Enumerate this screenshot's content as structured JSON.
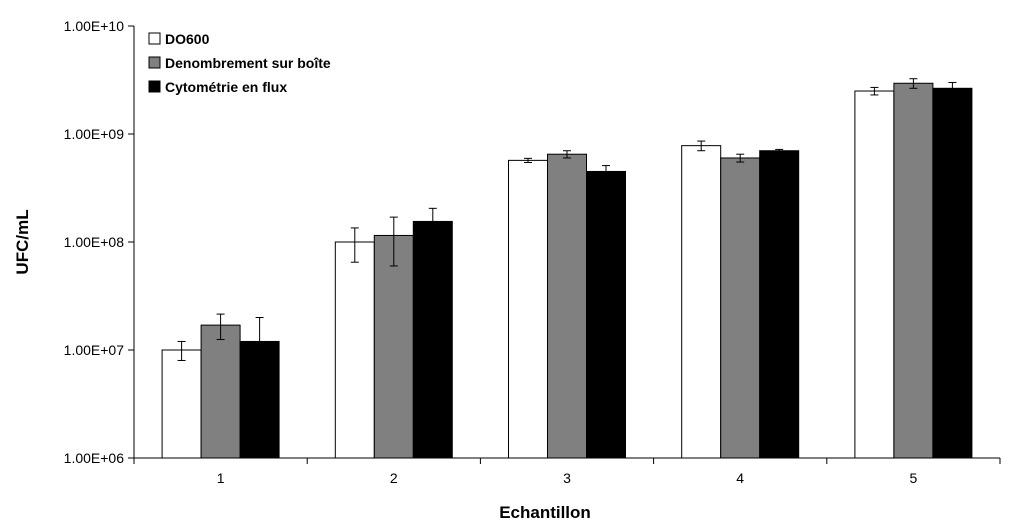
{
  "chart_data": {
    "type": "bar",
    "title": "",
    "xlabel": "Echantillon",
    "ylabel": "UFC/mL",
    "yscale": "log",
    "ylim": [
      1000000,
      10000000000
    ],
    "y_ticks": [
      1000000,
      10000000,
      100000000,
      1000000000,
      10000000000
    ],
    "y_tick_labels": [
      "1.00E+06",
      "1.00E+07",
      "1.00E+08",
      "1.00E+09",
      "1.00E+10"
    ],
    "categories": [
      "1",
      "2",
      "3",
      "4",
      "5"
    ],
    "grid": false,
    "legend_position": "top-left",
    "series": [
      {
        "name": "DO600",
        "color": "#ffffff",
        "values": [
          10000000,
          100000000,
          570000000,
          780000000,
          2500000000
        ],
        "error": [
          2000000,
          35000000,
          25000000,
          80000000,
          200000000
        ]
      },
      {
        "name": "Denombrement sur boîte",
        "color": "#808080",
        "values": [
          17000000,
          115000000,
          650000000,
          600000000,
          2950000000
        ],
        "error": [
          4500000,
          55000000,
          50000000,
          50000000,
          300000000
        ]
      },
      {
        "name": "Cytométrie en flux",
        "color": "#000000",
        "values": [
          12000000,
          155000000,
          450000000,
          700000000,
          2650000000
        ],
        "error": [
          8000000,
          50000000,
          60000000,
          20000000,
          350000000
        ]
      }
    ]
  }
}
